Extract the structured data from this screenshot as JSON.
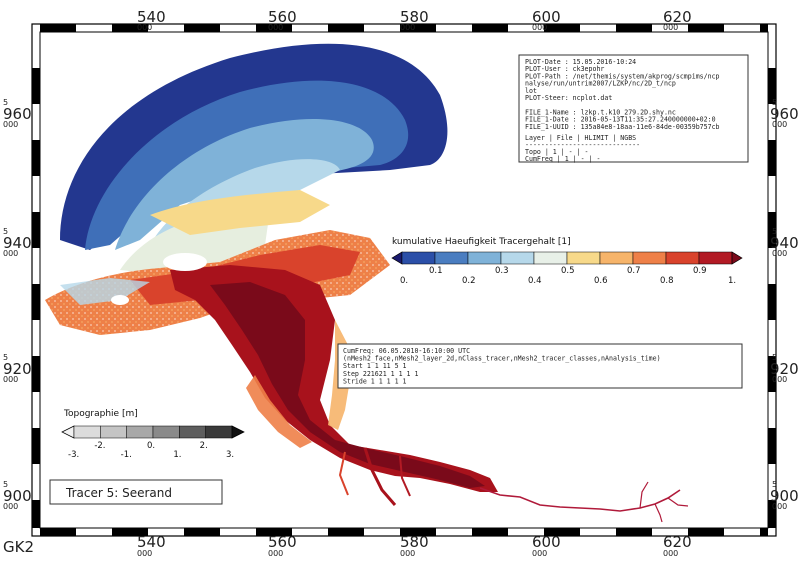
{
  "axes": {
    "x_ticks": [
      {
        "major": "540",
        "minor": "000"
      },
      {
        "major": "560",
        "minor": "000"
      },
      {
        "major": "580",
        "minor": "000"
      },
      {
        "major": "600",
        "minor": "000"
      },
      {
        "major": "620",
        "minor": "000"
      }
    ],
    "y_ticks": [
      {
        "major": "960",
        "minor": "000",
        "prefix": "5"
      },
      {
        "major": "940",
        "minor": "000",
        "prefix": "5"
      },
      {
        "major": "920",
        "minor": "000",
        "prefix": "5"
      },
      {
        "major": "900",
        "minor": "000",
        "prefix": "5"
      }
    ],
    "corner_label": "GK2"
  },
  "info_box": {
    "lines": [
      "PLOT-Date : 15.05.2016-10:24",
      "PLOT-User : ck3epohr",
      "PLOT-Path : /net/themis/system/akprog/scmpims/ncp",
      "            nalyse/run/untrim2007/LZKP/nc/2D_t/ncp",
      "            lot",
      "PLOT-Steer: ncplot.dat",
      "",
      "FILE_1-Name : lzkp.t.k10_279.2D.shy.nc",
      "FILE_1-Date : 2016-05-13T11:35:27.240000000+02:0",
      "FILE_1-UUID : 135a84e8-18aa-11e6-84de-00359b757cb"
    ],
    "table_header": "Layer  | File | HLIMIT | NGBS",
    "table_sep": "-----------------------------",
    "table_rows": [
      "Topo      |  1  |   -    |  -",
      "CumFreq   |  1  |   -    |  -"
    ]
  },
  "tracer_legend": {
    "title": "kumulative Haeufigkeit Tracergehalt [1]",
    "colors": [
      "#1a1a6e",
      "#2b4fa8",
      "#4a7dc0",
      "#7fb2d8",
      "#b6d8ea",
      "#e8f0e8",
      "#f7d98a",
      "#f6b46a",
      "#ee8048",
      "#d9432c",
      "#b21a24",
      "#7a0a1a"
    ],
    "labels_top": [
      "0.1",
      "0.3",
      "0.5",
      "0.7",
      "0.9"
    ],
    "labels_mid": [
      "0.2",
      "0.4",
      "0.6",
      "0.8"
    ],
    "labels_bottom": [
      "0.",
      "1."
    ]
  },
  "cumfreq_box": {
    "lines": [
      "CumFreq: 06.05.2010-16:10:00 UTC",
      "(nMesh2_face,nMesh2_layer_2d,nClass_tracer,nMesh2_tracer_classes,nAnalysis_time)",
      "Start          1        1       11        5        1",
      "Step      221621        1        1        1        1",
      "Stride         1        1        1        1        1"
    ]
  },
  "topo_legend": {
    "title": "Topographie [m]",
    "colors": [
      "#f2f2f2",
      "#dcdcdc",
      "#c4c4c4",
      "#a8a8a8",
      "#8a8a8a",
      "#5e5e5e",
      "#3a3a3a",
      "#111111"
    ],
    "labels": [
      "-3.",
      "-2.",
      "-1.",
      "0.",
      "1.",
      "2.",
      "3."
    ]
  },
  "tracer_label": "Tracer 5: Seerand"
}
